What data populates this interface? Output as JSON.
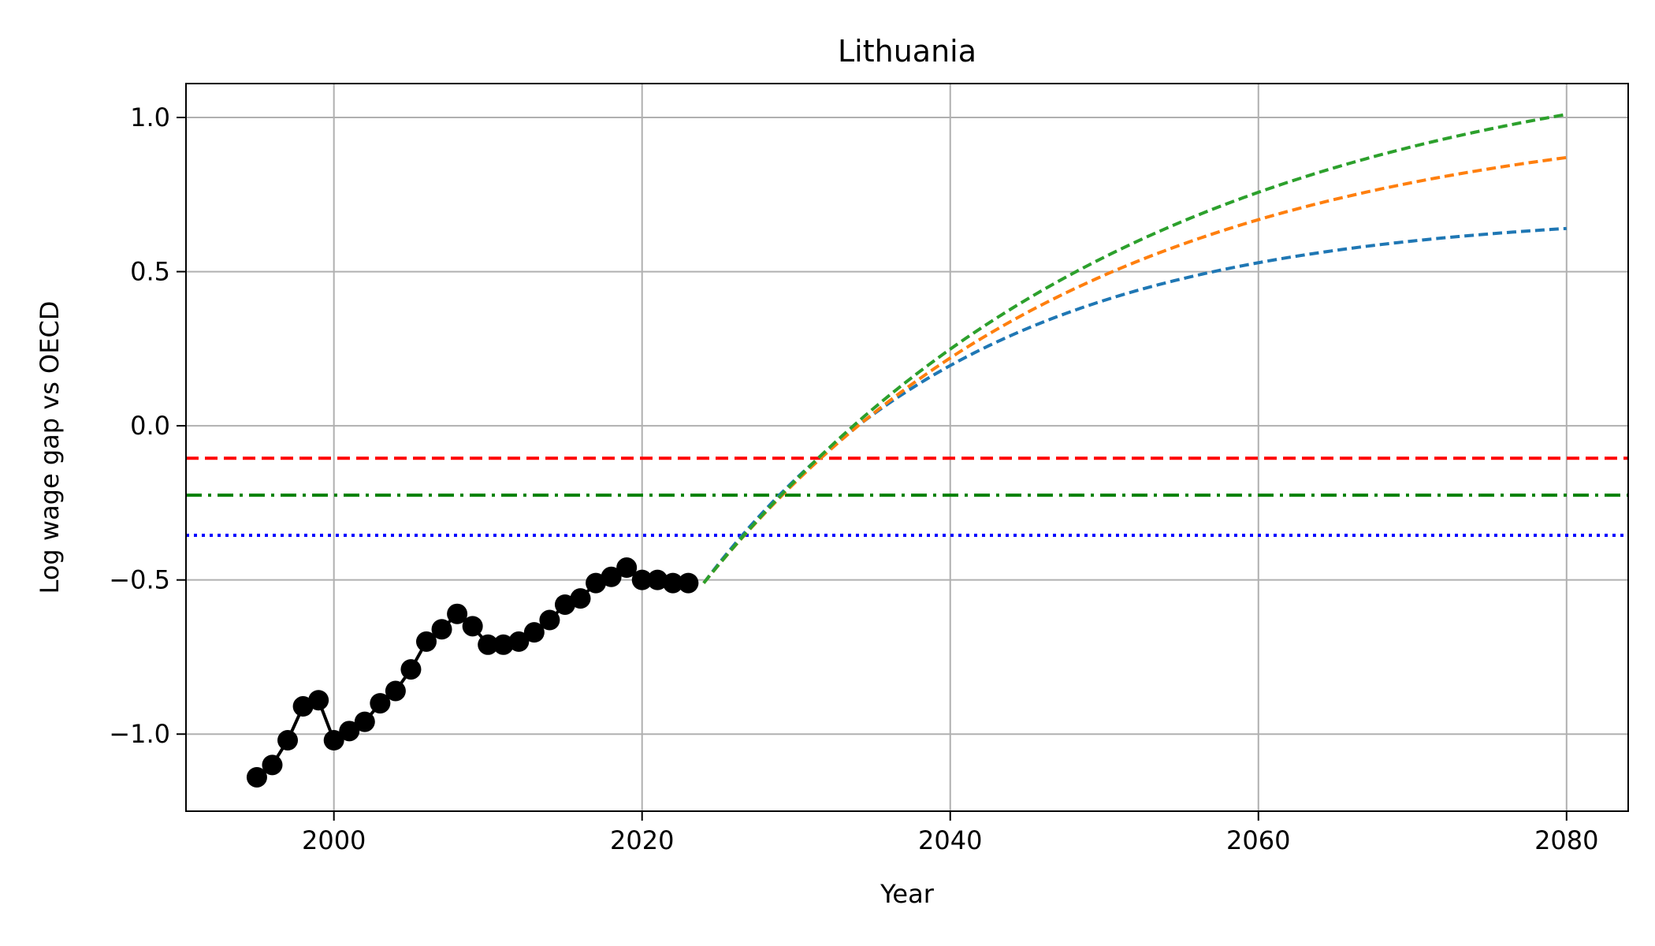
{
  "chart_data": {
    "type": "line",
    "title": "Lithuania",
    "xlabel": "Year",
    "ylabel": "Log wage gap vs OECD",
    "xlim": [
      1990.4,
      2084.0
    ],
    "ylim": [
      -1.25,
      1.11
    ],
    "grid": true,
    "x_ticks": [
      2000,
      2020,
      2040,
      2060,
      2080
    ],
    "x_tick_labels": [
      "2000",
      "2020",
      "2040",
      "2060",
      "2080"
    ],
    "y_ticks": [
      -1.0,
      -0.5,
      0.0,
      0.5,
      1.0
    ],
    "y_tick_labels": [
      "−1.0",
      "−0.5",
      "0.0",
      "0.5",
      "1.0"
    ],
    "historical": {
      "color": "#000000",
      "x": [
        1995,
        1996,
        1997,
        1998,
        1999,
        2000,
        2001,
        2002,
        2003,
        2004,
        2005,
        2006,
        2007,
        2008,
        2009,
        2010,
        2011,
        2012,
        2013,
        2014,
        2015,
        2016,
        2017,
        2018,
        2019,
        2020,
        2021,
        2022,
        2023
      ],
      "y": [
        -1.14,
        -1.1,
        -1.02,
        -0.91,
        -0.89,
        -1.02,
        -0.99,
        -0.96,
        -0.9,
        -0.86,
        -0.79,
        -0.7,
        -0.66,
        -0.61,
        -0.65,
        -0.71,
        -0.71,
        -0.7,
        -0.67,
        -0.63,
        -0.58,
        -0.56,
        -0.51,
        -0.49,
        -0.46,
        -0.5,
        -0.5,
        -0.51,
        -0.51
      ]
    },
    "projections": [
      {
        "color": "#1f77b4",
        "start_year": 2024,
        "start_value": -0.51,
        "end_year": 2080,
        "end_value": 0.64,
        "decay": 0.055
      },
      {
        "color": "#ff7f0e",
        "start_year": 2024,
        "start_value": -0.51,
        "end_year": 2080,
        "end_value": 0.87,
        "decay": 0.04
      },
      {
        "color": "#2ca02c",
        "start_year": 2024,
        "start_value": -0.51,
        "end_year": 2080,
        "end_value": 1.01,
        "decay": 0.035
      }
    ],
    "reference_lines": [
      {
        "y": -0.105,
        "color": "#ff0000",
        "style": "dashed"
      },
      {
        "y": -0.225,
        "color": "#008000",
        "style": "dashdot"
      },
      {
        "y": -0.355,
        "color": "#0000ff",
        "style": "dotted"
      }
    ]
  }
}
